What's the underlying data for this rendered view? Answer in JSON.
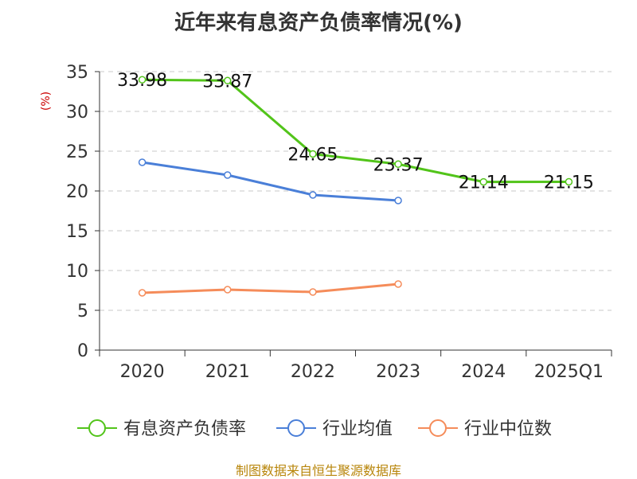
{
  "chart_data": {
    "type": "line",
    "title": "近年来有息资产负债率情况(%)",
    "ylabel": "(%)",
    "xlabel": "",
    "categories": [
      "2020",
      "2021",
      "2022",
      "2023",
      "2024",
      "2025Q1"
    ],
    "ylim": [
      0,
      35
    ],
    "yticks": [
      0,
      5,
      10,
      15,
      20,
      25,
      30,
      35
    ],
    "grid": true,
    "legend_position": "bottom",
    "series": [
      {
        "name": "有息资产负债率",
        "color": "#52c41a",
        "values": [
          33.98,
          33.87,
          24.65,
          23.37,
          21.14,
          21.15
        ],
        "labels": [
          "33.98",
          "33.87",
          "24.65",
          "23.37",
          "21.14",
          "21.15"
        ]
      },
      {
        "name": "行业均值",
        "color": "#4a7fd8",
        "values": [
          23.6,
          22.0,
          19.5,
          18.8,
          null,
          null
        ]
      },
      {
        "name": "行业中位数",
        "color": "#f58c5a",
        "values": [
          7.2,
          7.6,
          7.3,
          8.3,
          null,
          null
        ]
      }
    ]
  },
  "footer": {
    "source": "制图数据来自恒生聚源数据库"
  }
}
